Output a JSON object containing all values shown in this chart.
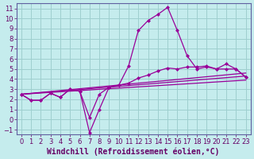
{
  "xlabel": "Windchill (Refroidissement éolien,°C)",
  "background_color": "#c5eced",
  "grid_color": "#9ecfcf",
  "line_color": "#990099",
  "border_color": "#6060a0",
  "xlim": [
    -0.5,
    23.5
  ],
  "ylim": [
    -1.5,
    11.5
  ],
  "yticks": [
    -1,
    0,
    1,
    2,
    3,
    4,
    5,
    6,
    7,
    8,
    9,
    10,
    11
  ],
  "xticks": [
    0,
    1,
    2,
    3,
    4,
    5,
    6,
    7,
    8,
    9,
    10,
    11,
    12,
    13,
    14,
    15,
    16,
    17,
    18,
    19,
    20,
    21,
    22,
    23
  ],
  "line1_x": [
    0,
    1,
    2,
    3,
    4,
    5,
    6,
    7,
    8,
    9,
    10,
    11,
    12,
    13,
    14,
    15,
    16,
    17,
    18,
    19,
    20,
    21,
    22,
    23
  ],
  "line1_y": [
    2.5,
    1.9,
    1.9,
    2.6,
    2.2,
    3.0,
    2.8,
    -1.3,
    1.0,
    3.2,
    3.4,
    5.3,
    8.8,
    9.8,
    10.4,
    11.1,
    8.8,
    6.3,
    5.0,
    5.2,
    5.0,
    5.5,
    5.0,
    4.2
  ],
  "line2_x": [
    0,
    1,
    2,
    3,
    4,
    5,
    6,
    7,
    8,
    9,
    10,
    11,
    12,
    13,
    14,
    15,
    16,
    17,
    18,
    19,
    20,
    21,
    22,
    23
  ],
  "line2_y": [
    2.5,
    1.9,
    1.9,
    2.6,
    2.2,
    3.0,
    2.8,
    0.2,
    2.5,
    3.2,
    3.4,
    3.6,
    4.1,
    4.4,
    4.8,
    5.1,
    5.0,
    5.2,
    5.2,
    5.3,
    5.0,
    5.0,
    5.0,
    4.2
  ],
  "line3_x": [
    0,
    23
  ],
  "line3_y": [
    2.5,
    4.6
  ],
  "line4_x": [
    0,
    23
  ],
  "line4_y": [
    2.5,
    4.3
  ],
  "line5_x": [
    0,
    23
  ],
  "line5_y": [
    2.5,
    3.9
  ],
  "xlabel_color": "#660066",
  "tick_color": "#660066",
  "xlabel_fontsize": 7,
  "tick_fontsize": 6
}
